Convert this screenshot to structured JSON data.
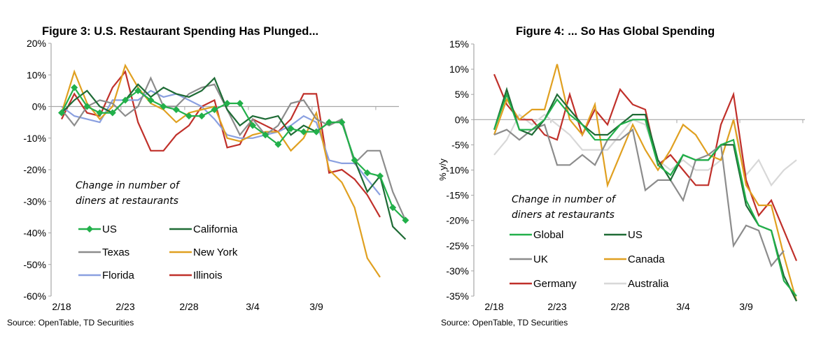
{
  "chart_data": [
    {
      "type": "line",
      "title": "Figure 3: U.S. Restaurant Spending Has Plunged...",
      "xlabel": "",
      "ylabel": "",
      "annotation": [
        "Change in number of",
        "diners at restaurants"
      ],
      "source": "Source: OpenTable, TD Securities",
      "ylim": [
        -60,
        20
      ],
      "yticks": [
        20,
        10,
        0,
        -10,
        -20,
        -30,
        -40,
        -50,
        -60
      ],
      "ytick_labels": [
        "20%",
        "10%",
        "0%",
        "-10%",
        "-20%",
        "-30%",
        "-40%",
        "-50%",
        "-60%"
      ],
      "x_tick_labels": [
        "2/18",
        "2/23",
        "2/28",
        "3/4",
        "3/9"
      ],
      "x_tick_index": [
        0,
        5,
        10,
        15,
        20
      ],
      "legend": "inside-bottom-left",
      "grid": false,
      "series": [
        {
          "name": "US",
          "color": "#22b04a",
          "marker": "diamond",
          "values": [
            -2,
            6,
            0,
            -2,
            -2,
            2,
            5,
            2,
            0,
            -1,
            -3,
            -3,
            -1,
            1,
            1,
            -6,
            -9,
            -12,
            -7,
            -8,
            -8,
            -5,
            -5,
            -17,
            -21,
            -22,
            -32,
            -36
          ]
        },
        {
          "name": "California",
          "color": "#1e6b35",
          "marker": "none",
          "values": [
            -2,
            2,
            5,
            0,
            -2,
            2,
            7,
            3,
            6,
            4,
            3,
            5,
            9,
            -1,
            -6,
            -3,
            -4,
            -3,
            -9,
            -6,
            -8,
            -5,
            -5,
            -17,
            -27,
            -22,
            -38,
            -42
          ]
        },
        {
          "name": "Texas",
          "color": "#8c8c8c",
          "marker": "none",
          "values": [
            -1,
            -6,
            0,
            2,
            1,
            -3,
            0,
            9,
            0,
            0,
            4,
            6,
            7,
            -1,
            -9,
            -4,
            -9,
            -6,
            1,
            2,
            -4,
            -6,
            -4,
            -18,
            -14,
            -14,
            -27,
            -36
          ]
        },
        {
          "name": "New York",
          "color": "#e0a020",
          "marker": "none",
          "values": [
            -2,
            11,
            1,
            -4,
            0,
            13,
            6,
            1,
            -1,
            -5,
            -2,
            -1,
            0,
            -10,
            -11,
            -9,
            -8,
            -8,
            -14,
            -10,
            -2,
            -20,
            -24,
            -32,
            -48,
            -54
          ]
        },
        {
          "name": "Florida",
          "color": "#8aa0e0",
          "marker": "none",
          "values": [
            0,
            -3,
            -4,
            -5,
            2,
            2,
            2,
            5,
            3,
            4,
            2,
            0,
            -4,
            -9,
            -10,
            -10,
            -9,
            -8,
            -6,
            -3,
            -5,
            -17,
            -18,
            -18,
            -23,
            -28
          ]
        },
        {
          "name": "Illinois",
          "color": "#c0302a",
          "marker": "none",
          "values": [
            -4,
            4,
            -2,
            -3,
            6,
            11,
            -5,
            -14,
            -14,
            -9,
            -6,
            0,
            2,
            -13,
            -12,
            -4,
            -6,
            -8,
            -4,
            4,
            4,
            -21,
            -20,
            -23,
            -28,
            -35
          ]
        }
      ]
    },
    {
      "type": "line",
      "title": "Figure 4: ... So Has Global Spending",
      "xlabel": "",
      "ylabel": "% y/y",
      "annotation": [
        "Change in number of",
        "diners at restaurants"
      ],
      "source": "Source: OpenTable, TD Securities",
      "ylim": [
        -35,
        15
      ],
      "yticks": [
        15,
        10,
        5,
        0,
        -5,
        -10,
        -15,
        -20,
        -25,
        -30,
        -35
      ],
      "ytick_labels": [
        "15%",
        "10%",
        "5%",
        "0%",
        "-5%",
        "-10%",
        "-15%",
        "-20%",
        "-25%",
        "-30%",
        "-35%"
      ],
      "x_tick_labels": [
        "2/18",
        "2/23",
        "2/28",
        "3/4",
        "3/9"
      ],
      "x_tick_index": [
        0,
        5,
        10,
        15,
        20
      ],
      "legend": "inside-bottom-left",
      "grid": false,
      "series": [
        {
          "name": "Global",
          "color": "#22b04a",
          "values": [
            -2,
            5,
            -2,
            -2,
            0,
            4,
            1,
            -1,
            -4,
            -4,
            -1,
            0,
            0,
            -9,
            -11,
            -7,
            -8,
            -8,
            -5,
            -4,
            -16,
            -21,
            -22,
            -32,
            -35
          ]
        },
        {
          "name": "US",
          "color": "#1e6b35",
          "values": [
            -2,
            6,
            -2,
            -3,
            0,
            5,
            2,
            -1,
            -3,
            -3,
            -1,
            1,
            1,
            -8,
            -12,
            -7,
            -8,
            -8,
            -5,
            -5,
            -17,
            -21,
            -22,
            -31,
            -36
          ]
        },
        {
          "name": "UK",
          "color": "#8c8c8c",
          "values": [
            -3,
            -2,
            -4,
            -2,
            -1,
            -9,
            -9,
            -7,
            -9,
            -4,
            -4,
            -2,
            -14,
            -12,
            -12,
            -16,
            -8,
            -7,
            -5,
            -25,
            -21,
            -22,
            -29,
            -26
          ]
        },
        {
          "name": "Canada",
          "color": "#e0a020",
          "values": [
            -3,
            4,
            0,
            2,
            2,
            11,
            0,
            -3,
            3,
            -13,
            -7,
            -1,
            -6,
            -10,
            -6,
            -1,
            -3,
            -7,
            -8,
            0,
            -13,
            -17,
            -17,
            -27,
            -36
          ]
        },
        {
          "name": "Germany",
          "color": "#c0302a",
          "values": [
            9,
            3,
            0,
            0,
            -3,
            -4,
            5,
            -3,
            2,
            -1,
            6,
            3,
            2,
            -9,
            -7,
            -10,
            -13,
            -13,
            -1,
            5,
            -12,
            -19,
            -16,
            -22,
            -28
          ]
        },
        {
          "name": "Australia",
          "color": "#d8d8d8",
          "values": [
            -7,
            -4,
            1,
            -1,
            1,
            -1,
            -3,
            -6,
            -6,
            -6,
            -3,
            0,
            -1,
            -8,
            -10,
            -8,
            -10,
            -10,
            -8,
            0,
            -11,
            -8,
            -13,
            -10,
            -8
          ]
        }
      ]
    }
  ]
}
